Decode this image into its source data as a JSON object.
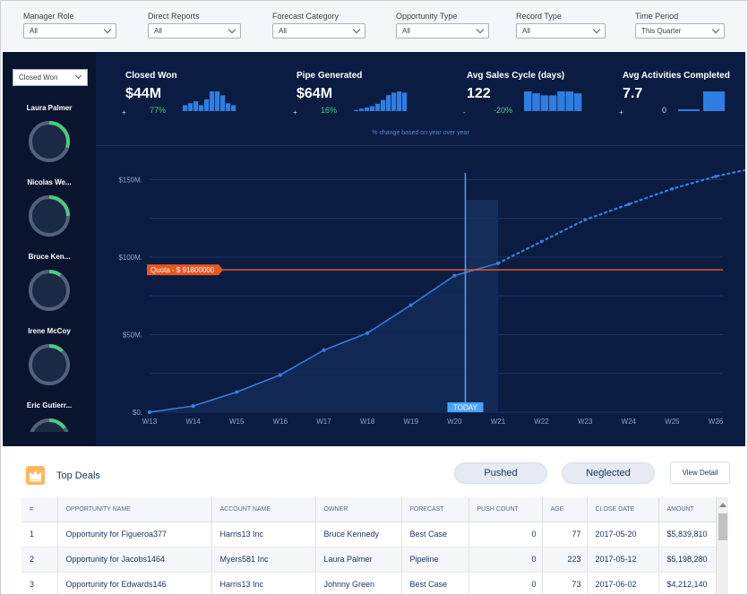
{
  "filters": [
    {
      "label": "Manager Role",
      "value": "All"
    },
    {
      "label": "Direct Reports",
      "value": "All"
    },
    {
      "label": "Forecast Category",
      "value": "All"
    },
    {
      "label": "Opportunity Type",
      "value": "All"
    },
    {
      "label": "Record Type",
      "value": "All"
    },
    {
      "label": "Time Period",
      "value": "This Quarter"
    }
  ],
  "left_panel": {
    "select": "Closed Won",
    "reps": [
      {
        "name": "Laura Palmer",
        "progress": 0.3
      },
      {
        "name": "Nicolas We...",
        "progress": 0.25
      },
      {
        "name": "Bruce Ken...",
        "progress": 0.1
      },
      {
        "name": "Irene McCoy",
        "progress": 0.12
      },
      {
        "name": "Eric Gutierr...",
        "progress": 0.15
      }
    ]
  },
  "kpis": [
    {
      "title": "Closed Won",
      "value": "$44M",
      "sign": "+",
      "pct": "77%",
      "bars": [
        3,
        4,
        5,
        3,
        6,
        10,
        10,
        8,
        4,
        3
      ]
    },
    {
      "title": "Pipe Generated",
      "value": "$64M",
      "sign": "+",
      "pct": "16%",
      "bars": [
        1,
        2,
        3,
        4,
        6,
        9,
        13,
        15,
        16,
        15
      ]
    },
    {
      "title": "Avg Sales Cycle (days)",
      "value": "122",
      "sign": "-",
      "pct": "-20%",
      "bars": [
        10,
        9,
        8,
        8,
        10,
        10,
        9
      ]
    },
    {
      "title": "Avg Activities Completed",
      "value": "7.7",
      "sign": "+",
      "zero": "0",
      "bars": [
        1,
        10
      ]
    }
  ],
  "yoy_note": "% change based on year over year",
  "chart_data": {
    "type": "line",
    "x": [
      "W13",
      "W14",
      "W15",
      "W16",
      "W17",
      "W18",
      "W19",
      "W20",
      "W21",
      "W22",
      "W23",
      "W24",
      "W25",
      "W26"
    ],
    "actual": [
      0,
      4,
      13,
      24,
      40,
      51,
      69,
      88,
      96
    ],
    "projected": [
      96,
      110,
      124,
      134,
      144,
      152,
      158
    ],
    "ylim": [
      0,
      160
    ],
    "yticks": [
      {
        "value": 0,
        "label": "$0."
      },
      {
        "value": 50,
        "label": "$50M."
      },
      {
        "value": 100,
        "label": "$100M."
      },
      {
        "value": 150,
        "label": "$150M."
      }
    ],
    "quota": {
      "value": 91.8,
      "label": "Quota - $ 91800000"
    },
    "today": {
      "x": 7.25,
      "label": "TODAY"
    },
    "colors": {
      "line": "#3d7ee0",
      "quota": "#e8561e",
      "today": "#4aa3ff",
      "grid": "#1f3563"
    }
  },
  "deals": {
    "title": "Top Deals",
    "pill_pushed": "Pushed",
    "pill_neglected": "Neglected",
    "view_detail": "View Detail",
    "columns": [
      "#",
      "OPPORTUNITY NAME",
      "ACCOUNT NAME",
      "OWNER",
      "FORECAST",
      "PUSH COUNT",
      "AGE",
      "CLOSE DATE",
      "AMOUNT"
    ],
    "rows": [
      [
        "1",
        "Opportunity for Figueroa377",
        "Harris13 Inc",
        "Bruce Kennedy",
        "Best Case",
        "0",
        "77",
        "2017-05-20",
        "$5,839,810"
      ],
      [
        "2",
        "Opportunity for Jacobs1464",
        "Myers581 Inc",
        "Laura Palmer",
        "Pipeline",
        "0",
        "223",
        "2017-05-12",
        "$5,198,280"
      ],
      [
        "3",
        "Opportunity for Edwards146",
        "Harris13 Inc",
        "Johnny Green",
        "Best Case",
        "0",
        "73",
        "2017-06-02",
        "$4,212,140"
      ]
    ]
  }
}
